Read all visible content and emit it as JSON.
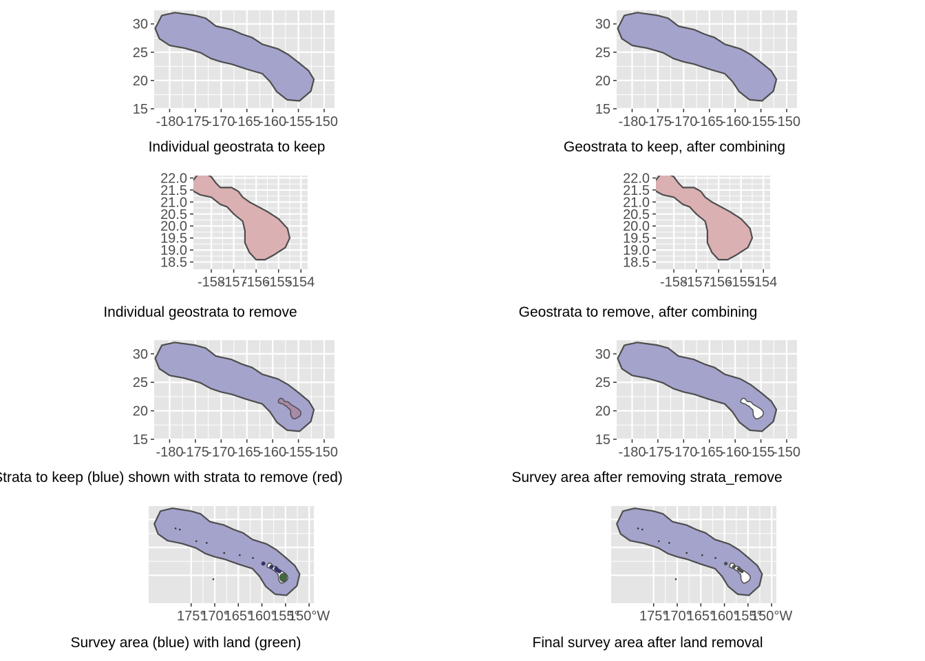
{
  "colors": {
    "panel_bg": "#e5e5e5",
    "grid": "#ffffff",
    "outline": "#4d4d4d",
    "keep_fill": "#a3a3cc",
    "remove_fill": "#dbb0b3",
    "overlap_fill": "#a98aa8",
    "land_fill": "#3f6b3f",
    "hole_fill": "#ffffff",
    "axis_text": "#4d4d4d"
  },
  "chart_data": [
    {
      "type": "map",
      "caption": "Individual geostrata to keep",
      "title": "",
      "xlabel": "",
      "ylabel": "",
      "xlim": [
        -183,
        -148
      ],
      "ylim": [
        15,
        32.4
      ],
      "x_ticks": [
        -180,
        -175,
        -170,
        -165,
        -160,
        -155,
        -150
      ],
      "y_ticks": [
        15,
        20,
        25,
        30
      ],
      "layers": [
        "keep"
      ]
    },
    {
      "type": "map",
      "caption": "Geostrata to keep, after combining",
      "title": "",
      "xlabel": "",
      "ylabel": "",
      "xlim": [
        -183,
        -148
      ],
      "ylim": [
        15,
        32.4
      ],
      "x_ticks": [
        -180,
        -175,
        -170,
        -165,
        -160,
        -155,
        -150
      ],
      "y_ticks": [
        15,
        20,
        25,
        30
      ],
      "layers": [
        "keep"
      ]
    },
    {
      "type": "map",
      "caption": "Individual geostrata to remove",
      "title": "",
      "xlabel": "",
      "ylabel": "",
      "xlim": [
        -158.8,
        -153.7
      ],
      "ylim": [
        18.2,
        22.1
      ],
      "x_ticks": [
        -158,
        -157,
        -156,
        -155,
        -154
      ],
      "y_ticks": [
        18.5,
        19.0,
        19.5,
        20.0,
        20.5,
        21.0,
        21.5,
        22.0
      ],
      "layers": [
        "remove"
      ]
    },
    {
      "type": "map",
      "caption": "Geostrata to remove, after combining",
      "title": "",
      "xlabel": "",
      "ylabel": "",
      "xlim": [
        -158.8,
        -153.7
      ],
      "ylim": [
        18.2,
        22.1
      ],
      "x_ticks": [
        -158,
        -157,
        -156,
        -155,
        -154
      ],
      "y_ticks": [
        18.5,
        19.0,
        19.5,
        20.0,
        20.5,
        21.0,
        21.5,
        22.0
      ],
      "layers": [
        "remove"
      ]
    },
    {
      "type": "map",
      "caption": "Strata to keep (blue) shown with strata to remove (red)",
      "title": "",
      "xlabel": "",
      "ylabel": "",
      "xlim": [
        -183,
        -148
      ],
      "ylim": [
        15,
        32.4
      ],
      "x_ticks": [
        -180,
        -175,
        -170,
        -165,
        -160,
        -155,
        -150
      ],
      "y_ticks": [
        15,
        20,
        25,
        30
      ],
      "layers": [
        "keep",
        "remove"
      ]
    },
    {
      "type": "map",
      "caption": "Survey area after removing strata_remove",
      "title": "",
      "xlabel": "",
      "ylabel": "",
      "xlim": [
        -183,
        -148
      ],
      "ylim": [
        15,
        32.4
      ],
      "x_ticks": [
        -180,
        -175,
        -170,
        -165,
        -160,
        -155,
        -150
      ],
      "y_ticks": [
        15,
        20,
        25,
        30
      ],
      "layers": [
        "keep",
        "hole"
      ]
    },
    {
      "type": "map",
      "caption": "Survey area (blue) with land (green)",
      "title": "",
      "xlabel": "",
      "ylabel": "",
      "xlim": [
        -184,
        -149
      ],
      "ylim": [
        15,
        32.4
      ],
      "x_ticks": [
        -175,
        -170,
        -165,
        -160,
        -155,
        -150
      ],
      "x_tick_labels": [
        "175°",
        "170°",
        "165°",
        "160°",
        "155°",
        "150°W"
      ],
      "y_ticks": [],
      "layers": [
        "keep",
        "land"
      ]
    },
    {
      "type": "map",
      "caption": "Final survey area after land removal",
      "title": "",
      "xlabel": "",
      "ylabel": "",
      "xlim": [
        -184,
        -149
      ],
      "ylim": [
        15,
        32.4
      ],
      "x_ticks": [
        -175,
        -170,
        -165,
        -160,
        -155,
        -150
      ],
      "x_tick_labels": [
        "175°",
        "170°",
        "165°",
        "160°",
        "155°",
        "150°W"
      ],
      "y_ticks": [],
      "layers": [
        "keep",
        "hole",
        "dots"
      ]
    }
  ]
}
